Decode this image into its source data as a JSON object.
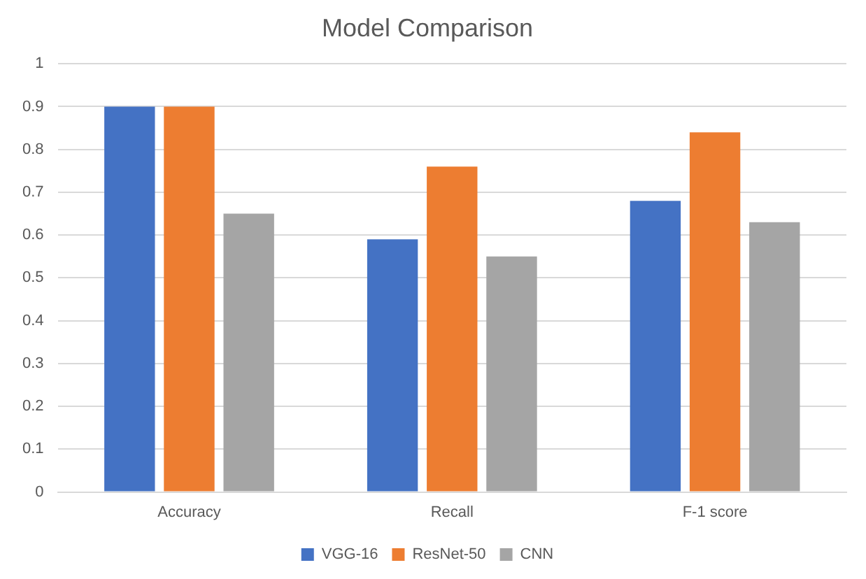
{
  "chart_data": {
    "type": "bar",
    "title": "Model Comparison",
    "categories": [
      "Accuracy",
      "Recall",
      "F-1 score"
    ],
    "series": [
      {
        "name": "VGG-16",
        "color": "#4472c4",
        "values": [
          0.9,
          0.59,
          0.68
        ]
      },
      {
        "name": "ResNet-50",
        "color": "#ed7d31",
        "values": [
          0.9,
          0.76,
          0.84
        ]
      },
      {
        "name": "CNN",
        "color": "#a5a5a5",
        "values": [
          0.65,
          0.55,
          0.63
        ]
      }
    ],
    "ylim": [
      0,
      1
    ],
    "yticks": [
      0,
      0.1,
      0.2,
      0.3,
      0.4,
      0.5,
      0.6,
      0.7,
      0.8,
      0.9,
      1
    ],
    "grid": "y",
    "legend": "bottom"
  }
}
